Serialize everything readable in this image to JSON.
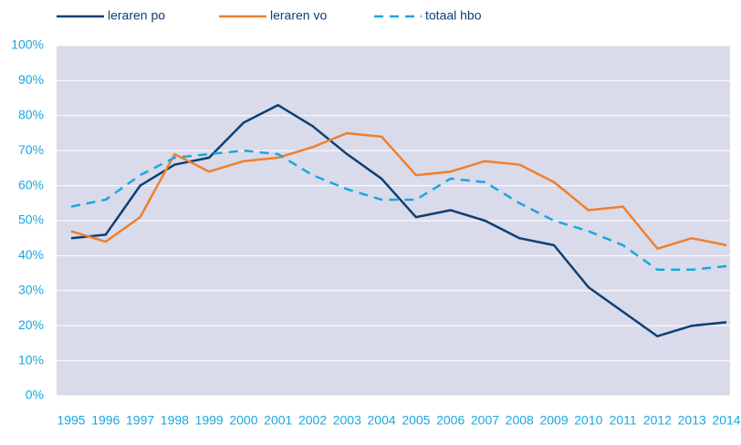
{
  "chart_data": {
    "type": "line",
    "categories": [
      "1995",
      "1996",
      "1997",
      "1998",
      "1999",
      "2000",
      "2001",
      "2002",
      "2003",
      "2004",
      "2005",
      "2006",
      "2007",
      "2008",
      "2009",
      "2010",
      "2011",
      "2012",
      "2013",
      "2014"
    ],
    "series": [
      {
        "name": "leraren po",
        "color": "#0d3f73",
        "dashed": false,
        "values": [
          45,
          46,
          60,
          66,
          68,
          78,
          83,
          77,
          69,
          62,
          51,
          53,
          50,
          45,
          43,
          31,
          24,
          17,
          20,
          21
        ]
      },
      {
        "name": "leraren vo",
        "color": "#f07f2b",
        "dashed": false,
        "values": [
          47,
          44,
          51,
          69,
          64,
          67,
          68,
          71,
          75,
          74,
          63,
          64,
          67,
          66,
          61,
          53,
          54,
          42,
          45,
          43
        ]
      },
      {
        "name": "totaal hbo",
        "color": "#1aa7df",
        "dashed": true,
        "values": [
          54,
          56,
          63,
          68,
          69,
          70,
          69,
          63,
          59,
          56,
          56,
          62,
          61,
          55,
          50,
          47,
          43,
          36,
          36,
          37
        ]
      }
    ],
    "ylim": [
      0,
      100
    ],
    "yticks": [
      {
        "value": 0,
        "label": "0%"
      },
      {
        "value": 10,
        "label": "10%"
      },
      {
        "value": 20,
        "label": "20%"
      },
      {
        "value": 30,
        "label": "30%"
      },
      {
        "value": 40,
        "label": "40%"
      },
      {
        "value": 50,
        "label": "50%"
      },
      {
        "value": 60,
        "label": "60%"
      },
      {
        "value": 70,
        "label": "70%"
      },
      {
        "value": 80,
        "label": "80%"
      },
      {
        "value": 90,
        "label": "90%"
      },
      {
        "value": 100,
        "label": "100%"
      }
    ],
    "grid": true,
    "background": "#d9dbea"
  }
}
